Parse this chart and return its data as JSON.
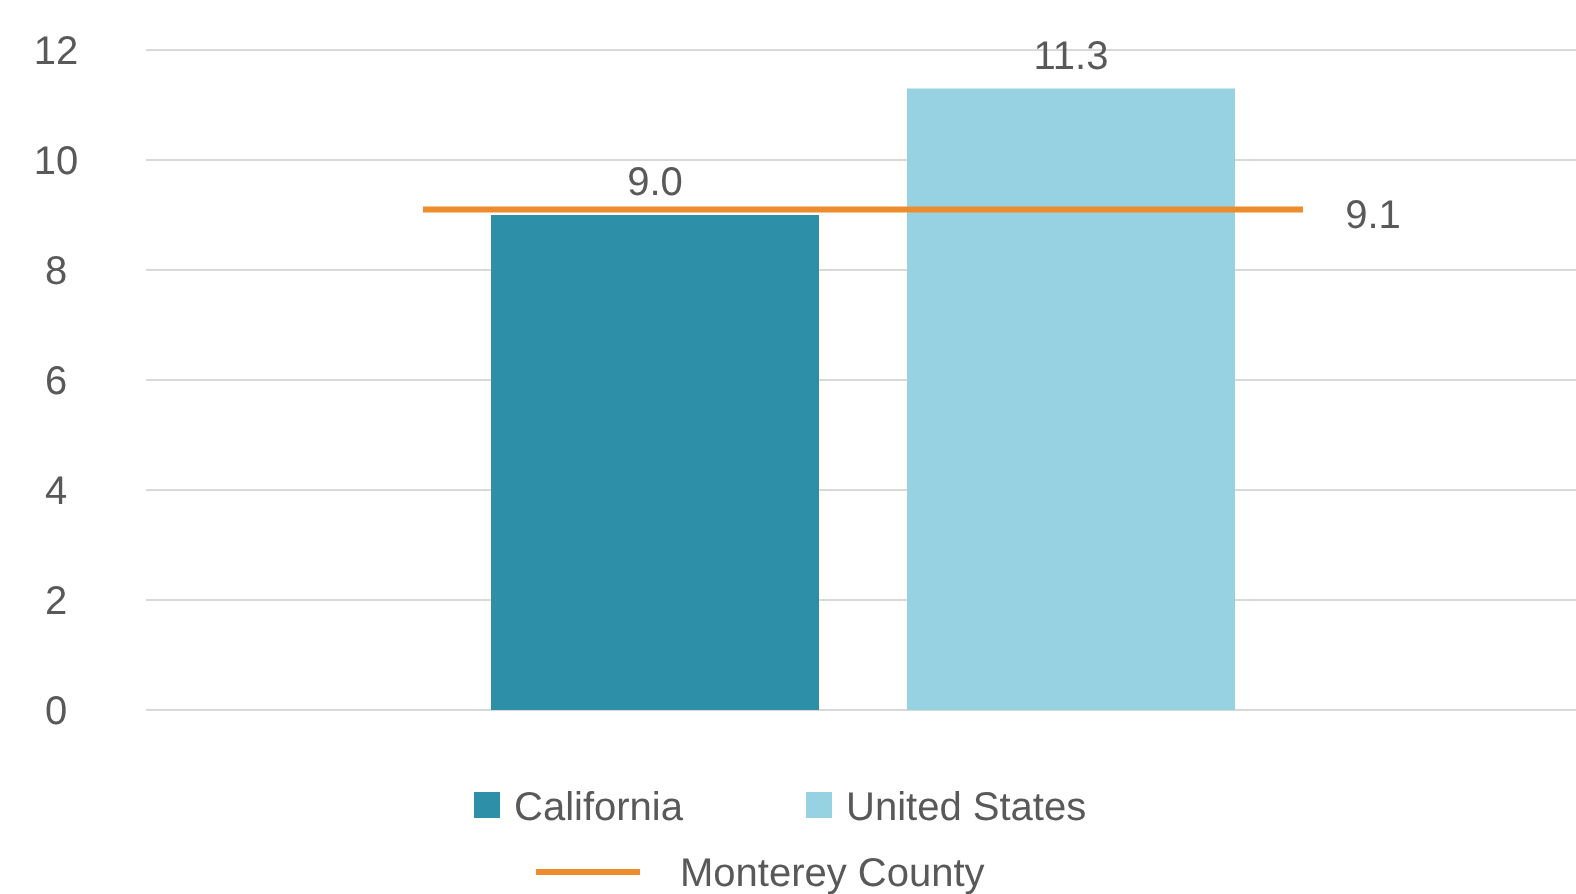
{
  "chart_data": {
    "type": "bar",
    "categories": [
      null
    ],
    "series": [
      {
        "name": "California",
        "color": "#2e8fa8",
        "values": [
          9.0
        ],
        "value_labels": [
          "9.0"
        ]
      },
      {
        "name": "United States",
        "color": "#97d2e3",
        "values": [
          11.3
        ],
        "value_labels": [
          "11.3"
        ]
      }
    ],
    "ylim": [
      0,
      12
    ],
    "yticks": [
      0,
      2,
      4,
      6,
      8,
      10,
      12
    ],
    "grid": "y",
    "legend": "bottom",
    "ref_lines": [
      {
        "axis": "y",
        "value": 9.1,
        "label": "Monterey County",
        "color": "#ed8b2f"
      }
    ],
    "annotations": [
      "9.1"
    ]
  }
}
